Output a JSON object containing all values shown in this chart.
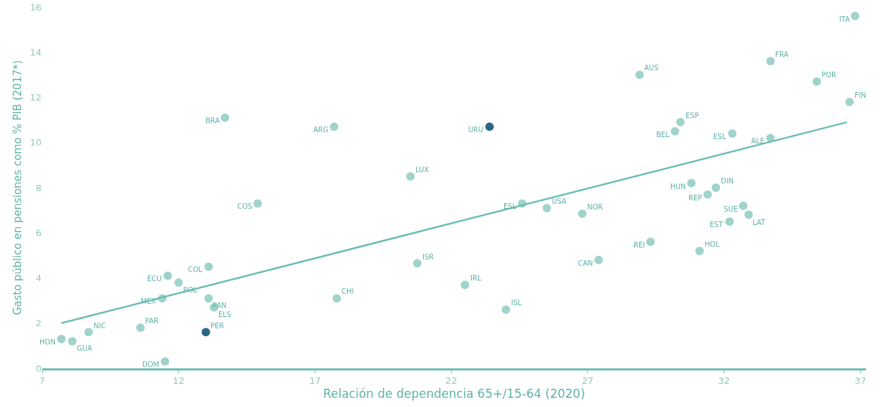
{
  "chart_data": {
    "type": "scatter",
    "xlabel": "Relación de dependencia 65+/15-64 (2020)",
    "ylabel": "Gasto público en pensiones como % PIB (2017*)",
    "xlim": [
      7,
      37.2
    ],
    "xticks": [
      7,
      12,
      17,
      22,
      27,
      32,
      37
    ],
    "ylim": [
      0,
      16
    ],
    "yticks": [
      0,
      2,
      4,
      6,
      8,
      10,
      12,
      14,
      16
    ],
    "grid": false,
    "marker": "circle",
    "series": [
      {
        "x": [
          36.8,
          33.7,
          35.4,
          36.6,
          28.9,
          30.4,
          30.2,
          32.3,
          33.7,
          30.8,
          31.7,
          31.4,
          32.7,
          32.9,
          32.2,
          31.1,
          29.3,
          27.4,
          26.8,
          25.5,
          24.6,
          24.0,
          22.5,
          20.75,
          17.8,
          20.5,
          23.4,
          17.7,
          13.7,
          14.9,
          13.1,
          11.6,
          12.0,
          11.4,
          13.1,
          13.3,
          13.0,
          10.6,
          8.7,
          7.7,
          8.1,
          11.5
        ],
        "values": [
          15.6,
          13.6,
          12.7,
          11.8,
          13.0,
          10.9,
          10.5,
          10.4,
          10.2,
          8.2,
          8.0,
          7.7,
          7.2,
          6.8,
          6.5,
          5.2,
          5.6,
          4.8,
          6.85,
          7.1,
          7.3,
          2.6,
          3.7,
          4.65,
          3.1,
          8.5,
          10.7,
          10.7,
          11.1,
          7.3,
          4.5,
          4.1,
          3.8,
          3.1,
          3.1,
          2.7,
          1.6,
          1.8,
          1.6,
          1.3,
          1.2,
          0.3
        ],
        "colors": [
          "#9fd3cb",
          "#9fd3cb",
          "#9fd3cb",
          "#9fd3cb",
          "#9fd3cb",
          "#9fd3cb",
          "#9fd3cb",
          "#9fd3cb",
          "#9fd3cb",
          "#9fd3cb",
          "#9fd3cb",
          "#9fd3cb",
          "#9fd3cb",
          "#9fd3cb",
          "#9fd3cb",
          "#9fd3cb",
          "#9fd3cb",
          "#9fd3cb",
          "#9fd3cb",
          "#9fd3cb",
          "#9fd3cb",
          "#9fd3cb",
          "#9fd3cb",
          "#9fd3cb",
          "#9fd3cb",
          "#9fd3cb",
          "#2b6584",
          "#9fd3cb",
          "#9fd3cb",
          "#9fd3cb",
          "#9fd3cb",
          "#9fd3cb",
          "#9fd3cb",
          "#9fd3cb",
          "#9fd3cb",
          "#9fd3cb",
          "#2b6584",
          "#9fd3cb",
          "#9fd3cb",
          "#9fd3cb",
          "#9fd3cb",
          "#9fd3cb"
        ]
      },
      {
        "type": "line",
        "x": [
          7.7,
          36.5
        ],
        "values": [
          2.0,
          10.9
        ],
        "color": "#6bbdb2",
        "marker": "none"
      }
    ],
    "annotations": [
      {
        "text": "ITA",
        "x": 36.8,
        "y": 15.6
      },
      {
        "text": "FRA",
        "x": 33.7,
        "y": 13.6
      },
      {
        "text": "POR",
        "x": 35.4,
        "y": 12.7
      },
      {
        "text": "FIN",
        "x": 36.6,
        "y": 11.8
      },
      {
        "text": "AUS",
        "x": 28.9,
        "y": 13.0
      },
      {
        "text": "ESP",
        "x": 30.4,
        "y": 10.9
      },
      {
        "text": "BEL",
        "x": 30.2,
        "y": 10.5
      },
      {
        "text": "ESL",
        "x": 32.3,
        "y": 10.4
      },
      {
        "text": "ALE",
        "x": 33.7,
        "y": 10.2
      },
      {
        "text": "HUN",
        "x": 30.8,
        "y": 8.2
      },
      {
        "text": "DIN",
        "x": 31.7,
        "y": 8.0
      },
      {
        "text": "REP",
        "x": 31.4,
        "y": 7.7
      },
      {
        "text": "SUE",
        "x": 32.7,
        "y": 7.2
      },
      {
        "text": "LAT",
        "x": 32.9,
        "y": 6.8
      },
      {
        "text": "EST",
        "x": 32.2,
        "y": 6.5
      },
      {
        "text": "HOL",
        "x": 31.1,
        "y": 5.2
      },
      {
        "text": "REI",
        "x": 29.3,
        "y": 5.6
      },
      {
        "text": "CAN",
        "x": 27.4,
        "y": 4.8
      },
      {
        "text": "NOR",
        "x": 26.8,
        "y": 6.85
      },
      {
        "text": "USA",
        "x": 25.5,
        "y": 7.1
      },
      {
        "text": "ESL",
        "x": 24.6,
        "y": 7.3
      },
      {
        "text": "ISL",
        "x": 24.0,
        "y": 2.6
      },
      {
        "text": "IRL",
        "x": 22.5,
        "y": 3.7
      },
      {
        "text": "ISR",
        "x": 20.75,
        "y": 4.65
      },
      {
        "text": "CHI",
        "x": 17.8,
        "y": 3.1
      },
      {
        "text": "LUX",
        "x": 20.5,
        "y": 8.5
      },
      {
        "text": "URU",
        "x": 23.4,
        "y": 10.7
      },
      {
        "text": "ARG",
        "x": 17.7,
        "y": 10.7
      },
      {
        "text": "BRA",
        "x": 13.7,
        "y": 11.1
      },
      {
        "text": "COS",
        "x": 14.9,
        "y": 7.3
      },
      {
        "text": "COL",
        "x": 13.1,
        "y": 4.5
      },
      {
        "text": "ECU",
        "x": 11.6,
        "y": 4.1
      },
      {
        "text": "BOL",
        "x": 12.0,
        "y": 3.8
      },
      {
        "text": "MEX",
        "x": 11.4,
        "y": 3.1
      },
      {
        "text": "PAN",
        "x": 13.1,
        "y": 3.1
      },
      {
        "text": "ELS",
        "x": 13.3,
        "y": 2.7
      },
      {
        "text": "PER",
        "x": 13.0,
        "y": 1.6
      },
      {
        "text": "PAR",
        "x": 10.6,
        "y": 1.8
      },
      {
        "text": "NIC",
        "x": 8.7,
        "y": 1.6
      },
      {
        "text": "HON",
        "x": 7.7,
        "y": 1.3
      },
      {
        "text": "GUA",
        "x": 8.1,
        "y": 1.2
      },
      {
        "text": "DOM",
        "x": 11.5,
        "y": 0.3
      }
    ]
  }
}
